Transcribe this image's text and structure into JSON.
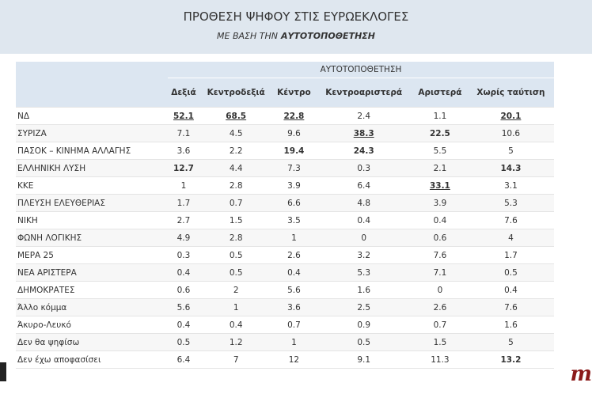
{
  "header": {
    "title": "ΠΡΟΘΕΣΗ ΨΗΦΟΥ ΣΤΙΣ ΕΥΡΩΕΚΛΟΓΕΣ",
    "subtitle": "ΜΕ ΒΑΣΗ ΤΗΝ",
    "subtitle_emphasis": "ΑΥΤΟΤΟΠΟΘΕΤΗΣΗ"
  },
  "table": {
    "group_header": "ΑΥΤΟΤΟΠΟΘΕΤΗΣΗ",
    "columns": [
      "Δεξιά",
      "Κεντροδεξιά",
      "Κέντρο",
      "Κεντροαριστερά",
      "Αριστερά",
      "Χωρίς ταύτιση"
    ],
    "rows": [
      {
        "label": "ΝΔ",
        "cells": [
          {
            "text": "52.1",
            "bold": true,
            "underline": true
          },
          {
            "text": "68.5",
            "bold": true,
            "underline": true
          },
          {
            "text": "22.8",
            "bold": true,
            "underline": true
          },
          "2.4",
          "1.1",
          {
            "text": "20.1",
            "bold": true,
            "underline": true
          }
        ]
      },
      {
        "label": "ΣΥΡΙΖΑ",
        "cells": [
          "7.1",
          "4.5",
          "9.6",
          {
            "text": "38.3",
            "bold": true,
            "underline": true
          },
          {
            "text": "22.5",
            "bold": true
          },
          "10.6"
        ]
      },
      {
        "label": "ΠΑΣΟΚ – ΚΙΝΗΜΑ ΑΛΛΑΓΗΣ",
        "cells": [
          "3.6",
          "2.2",
          {
            "text": "19.4",
            "bold": true
          },
          {
            "text": "24.3",
            "bold": true
          },
          "5.5",
          "5"
        ]
      },
      {
        "label": "ΕΛΛΗΝΙΚΗ ΛΥΣΗ",
        "cells": [
          {
            "text": "12.7",
            "bold": true
          },
          "4.4",
          "7.3",
          "0.3",
          "2.1",
          {
            "text": "14.3",
            "bold": true
          }
        ]
      },
      {
        "label": "ΚΚΕ",
        "cells": [
          "1",
          "2.8",
          "3.9",
          "6.4",
          {
            "text": "33.1",
            "bold": true,
            "underline": true
          },
          "3.1"
        ]
      },
      {
        "label": "ΠΛΕΥΣΗ ΕΛΕΥΘΕΡΙΑΣ",
        "cells": [
          "1.7",
          "0.7",
          "6.6",
          "4.8",
          "3.9",
          "5.3"
        ]
      },
      {
        "label": "ΝΙΚΗ",
        "cells": [
          "2.7",
          "1.5",
          "3.5",
          "0.4",
          "0.4",
          "7.6"
        ]
      },
      {
        "label": "ΦΩΝΗ ΛΟΓΙΚΗΣ",
        "cells": [
          "4.9",
          "2.8",
          "1",
          "0",
          "0.6",
          "4"
        ]
      },
      {
        "label": "ΜΕΡΑ 25",
        "cells": [
          "0.3",
          "0.5",
          "2.6",
          "3.2",
          "7.6",
          "1.7"
        ]
      },
      {
        "label": "ΝΕΑ ΑΡΙΣΤΕΡΑ",
        "cells": [
          "0.4",
          "0.5",
          "0.4",
          "5.3",
          "7.1",
          "0.5"
        ]
      },
      {
        "label": "ΔΗΜΟΚΡΑΤΕΣ",
        "cells": [
          "0.6",
          "2",
          "5.6",
          "1.6",
          "0",
          "0.4"
        ]
      },
      {
        "label": "Άλλο κόμμα",
        "cells": [
          "5.6",
          "1",
          "3.6",
          "2.5",
          "2.6",
          "7.6"
        ]
      },
      {
        "label": "Άκυρο-Λευκό",
        "cells": [
          "0.4",
          "0.4",
          "0.7",
          "0.9",
          "0.7",
          "1.6"
        ]
      },
      {
        "label": "Δεν θα ψηφίσω",
        "cells": [
          "0.5",
          "1.2",
          "1",
          "0.5",
          "1.5",
          "5"
        ]
      },
      {
        "label": "Δεν έχω αποφασίσει",
        "cells": [
          "6.4",
          "7",
          "12",
          "9.1",
          "11.3",
          {
            "text": "13.2",
            "bold": true
          }
        ]
      }
    ]
  },
  "logo": "m"
}
